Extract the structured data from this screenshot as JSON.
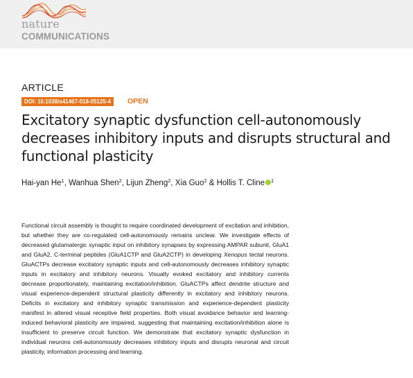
{
  "journal": {
    "name_line1": "nature",
    "name_line2": "COMMUNICATIONS"
  },
  "article_type": "ARTICLE",
  "doi": "DOI: 10.1038/s41467-018-05125-4",
  "access": "OPEN",
  "title": "Excitatory synaptic dysfunction cell-autonomously decreases inhibitory inputs and disrupts structural and functional plasticity",
  "authors": [
    {
      "name": "Hai-yan He",
      "affil": "1",
      "sep": ", "
    },
    {
      "name": "Wanhua Shen",
      "affil": "2",
      "sep": ", "
    },
    {
      "name": "Lijun Zheng",
      "affil": "2",
      "sep": ", "
    },
    {
      "name": "Xia Guo",
      "affil": "2",
      "sep": " & "
    },
    {
      "name": "Hollis T. Cline",
      "affil": "1",
      "sep": ""
    }
  ],
  "abstract": {
    "part1": "Functional circuit assembly is thought to require coordinated development of excitation and inhibition, but whether they are co-regulated cell-autonomously remains unclear. We investigate effects of decreased glutamatergic synaptic input on inhibitory synapses by expressing AMPAR subunit, GluA1 and GluA2, C-terminal peptides (GluA1CTP and GluA2CTP) in developing ",
    "italic": "Xenopus",
    "part2": " tectal neurons. GluACTPs decrease excitatory synaptic inputs and cell-autonomously decreases inhibitory synaptic inputs in excitatory and inhibitory neurons. Visually evoked excitatory and inhibitory currents decrease proportionately, maintaining excitation/inhibition. GluACTPs affect dendrite structure and visual experience-dependent structural plasticity differently in excitatory and inhibitory neurons. Deficits in excitatory and inhibitory synaptic transmission and experience-dependent plasticity manifest in altered visual receptive field properties. Both visual avoidance behavior and learning-induced behavioral plasticity are impaired, suggesting that maintaining excitation/inhibition alone is insufficient to preserve circuit function. We demonstrate that excitatory synaptic dysfunction in individual neurons cell-autonomously decreases inhibitory inputs and disrupts neuronal and circuit plasticity, information processing and learning."
  },
  "colors": {
    "accent_orange": "#e8731a",
    "logo_wave_red": "#d9442b",
    "logo_wave_orange": "#f0a050",
    "logo_grey": "#9a9a9a",
    "orcid_green": "#a6ce39"
  },
  "icons": [
    "nature-waves-logo",
    "orcid-icon"
  ]
}
